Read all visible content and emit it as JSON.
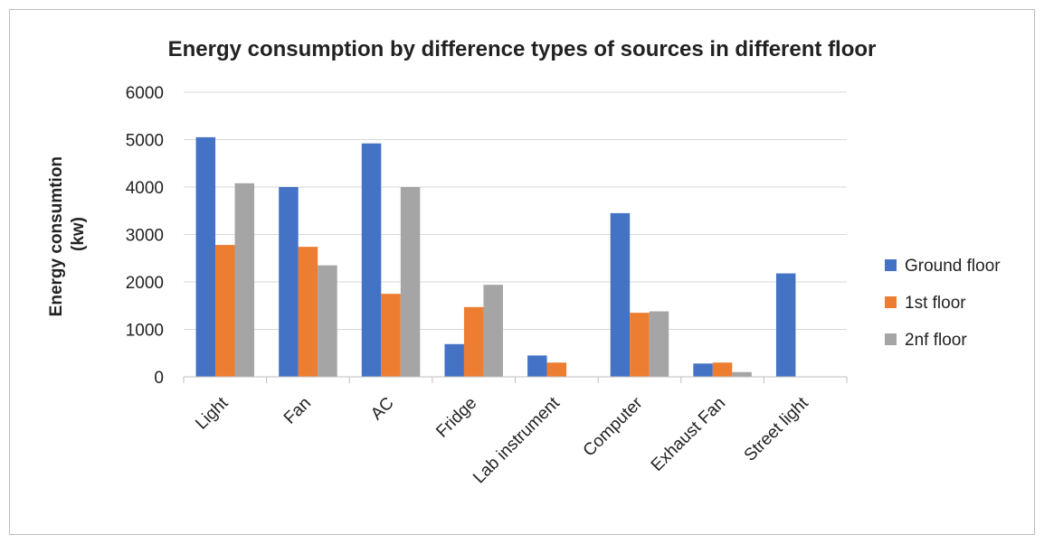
{
  "chart_data": {
    "type": "bar",
    "title": "Energy consumption  by difference types of sources in different floor",
    "ylabel_lines": [
      "Energy  consumtion",
      "(kw)"
    ],
    "xlabel": "",
    "ylim": [
      0,
      6000
    ],
    "yticks": [
      0,
      1000,
      2000,
      3000,
      4000,
      5000,
      6000
    ],
    "grid": true,
    "legend_position": "right",
    "categories": [
      "Light",
      "Fan",
      "AC",
      "Fridge",
      "Lab instrument",
      "Computer",
      "Exhaust Fan",
      "Street light"
    ],
    "series": [
      {
        "name": "Ground floor",
        "color": "#4472C4",
        "values": [
          5050,
          4000,
          4920,
          690,
          450,
          3450,
          280,
          2180
        ]
      },
      {
        "name": "1st floor",
        "color": "#ED7D31",
        "values": [
          2780,
          2740,
          1750,
          1470,
          300,
          1350,
          300,
          0
        ]
      },
      {
        "name": "2nf floor",
        "color": "#A5A5A5",
        "values": [
          4080,
          2350,
          4000,
          1940,
          0,
          1380,
          100,
          0
        ]
      }
    ]
  }
}
